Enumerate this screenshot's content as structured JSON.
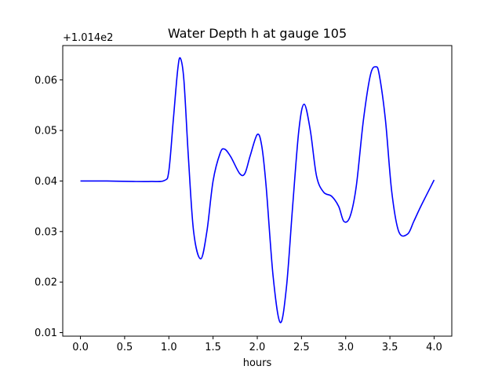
{
  "chart_data": {
    "type": "line",
    "title": "Water Depth h at gauge 105",
    "xlabel": "hours",
    "ylabel": "",
    "y_offset_label": "+1.014e2",
    "xlim": [
      -0.2,
      4.2
    ],
    "ylim": [
      0.0093,
      0.0668
    ],
    "x_ticks": [
      0.0,
      0.5,
      1.0,
      1.5,
      2.0,
      2.5,
      3.0,
      3.5,
      4.0
    ],
    "x_tick_labels": [
      "0.0",
      "0.5",
      "1.0",
      "1.5",
      "2.0",
      "2.5",
      "3.0",
      "3.5",
      "4.0"
    ],
    "y_ticks": [
      0.01,
      0.02,
      0.03,
      0.04,
      0.05,
      0.06
    ],
    "y_tick_labels": [
      "0.01",
      "0.02",
      "0.03",
      "0.04",
      "0.05",
      "0.06"
    ],
    "grid": false,
    "legend": "none",
    "series": [
      {
        "color": "#0000ff",
        "x": [
          0.0,
          0.3,
          0.6,
          0.8,
          0.95,
          1.0,
          1.05,
          1.1,
          1.13,
          1.17,
          1.22,
          1.28,
          1.36,
          1.43,
          1.5,
          1.58,
          1.63,
          1.7,
          1.8,
          1.86,
          1.92,
          2.0,
          2.05,
          2.1,
          2.18,
          2.26,
          2.33,
          2.4,
          2.47,
          2.53,
          2.6,
          2.67,
          2.75,
          2.84,
          2.92,
          2.98,
          3.05,
          3.12,
          3.2,
          3.28,
          3.34,
          3.38,
          3.45,
          3.52,
          3.6,
          3.7,
          3.77,
          3.85,
          4.0
        ],
        "y": [
          0.04,
          0.04,
          0.0399,
          0.0399,
          0.0401,
          0.042,
          0.052,
          0.062,
          0.0643,
          0.06,
          0.045,
          0.03,
          0.0246,
          0.03,
          0.04,
          0.0455,
          0.0463,
          0.0448,
          0.0415,
          0.0415,
          0.045,
          0.0492,
          0.047,
          0.039,
          0.021,
          0.012,
          0.019,
          0.035,
          0.05,
          0.0552,
          0.05,
          0.041,
          0.0378,
          0.037,
          0.035,
          0.032,
          0.033,
          0.039,
          0.052,
          0.061,
          0.0626,
          0.061,
          0.052,
          0.038,
          0.03,
          0.0295,
          0.032,
          0.035,
          0.0402
        ]
      }
    ]
  }
}
